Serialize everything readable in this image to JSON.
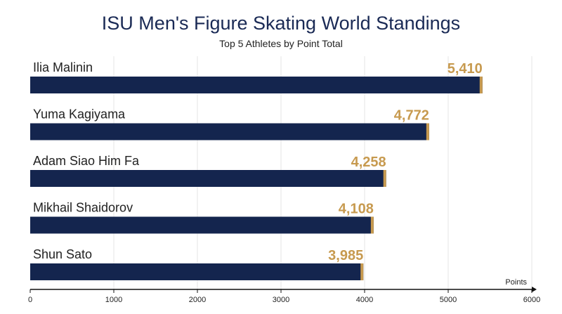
{
  "title": "ISU Men's Figure Skating World Standings",
  "subtitle": "Top 5 Athletes by Point Total",
  "colors": {
    "bar": "#14254e",
    "accent": "#c79a4f",
    "text": "#222222",
    "grid": "#e6e6e6"
  },
  "chart_data": {
    "type": "bar",
    "orientation": "horizontal",
    "categories": [
      "Ilia Malinin",
      "Yuma Kagiyama",
      "Adam Siao Him Fa",
      "Mikhail Shaidorov",
      "Shun Sato"
    ],
    "values": [
      5410,
      4772,
      4258,
      4108,
      3985
    ],
    "value_labels": [
      "5,410",
      "4,772",
      "4,258",
      "4,108",
      "3,985"
    ],
    "xlabel": "Points",
    "xlim": [
      0,
      6000
    ],
    "xticks": [
      "0",
      "1000",
      "2000",
      "3000",
      "4000",
      "5000",
      "6000"
    ],
    "grid": true
  }
}
